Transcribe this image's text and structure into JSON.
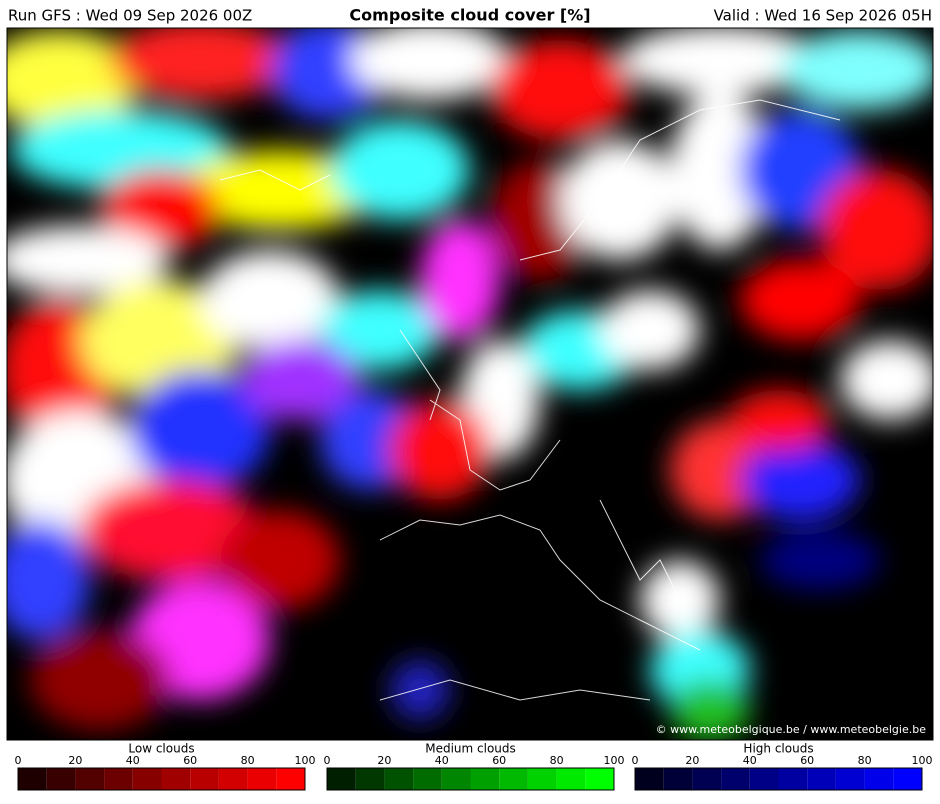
{
  "header": {
    "run": "Run GFS : Wed 09 Sep 2026 00Z",
    "title": "Composite cloud cover [%]",
    "valid": "Valid : Wed 16 Sep 2026 05H"
  },
  "map": {
    "credit": "© www.meteobelgique.be / www.meteobelgie.be"
  },
  "legends": [
    {
      "title": "Low clouds",
      "ticks": [
        0,
        20,
        40,
        60,
        80,
        100
      ],
      "colors": [
        "#1e0000",
        "#380000",
        "#520000",
        "#6c0000",
        "#860000",
        "#a00000",
        "#b90000",
        "#d20000",
        "#ea0000",
        "#ff0000"
      ]
    },
    {
      "title": "Medium clouds",
      "ticks": [
        0,
        20,
        40,
        60,
        80,
        100
      ],
      "colors": [
        "#001e00",
        "#003800",
        "#005200",
        "#006c00",
        "#008600",
        "#00a000",
        "#00b900",
        "#00d200",
        "#00ea00",
        "#00ff00"
      ]
    },
    {
      "title": "High clouds",
      "ticks": [
        0,
        20,
        40,
        60,
        80,
        100
      ],
      "colors": [
        "#00001e",
        "#000038",
        "#000052",
        "#00006c",
        "#000086",
        "#0000a0",
        "#0000b9",
        "#0000d2",
        "#0000ea",
        "#0000ff"
      ]
    }
  ]
}
